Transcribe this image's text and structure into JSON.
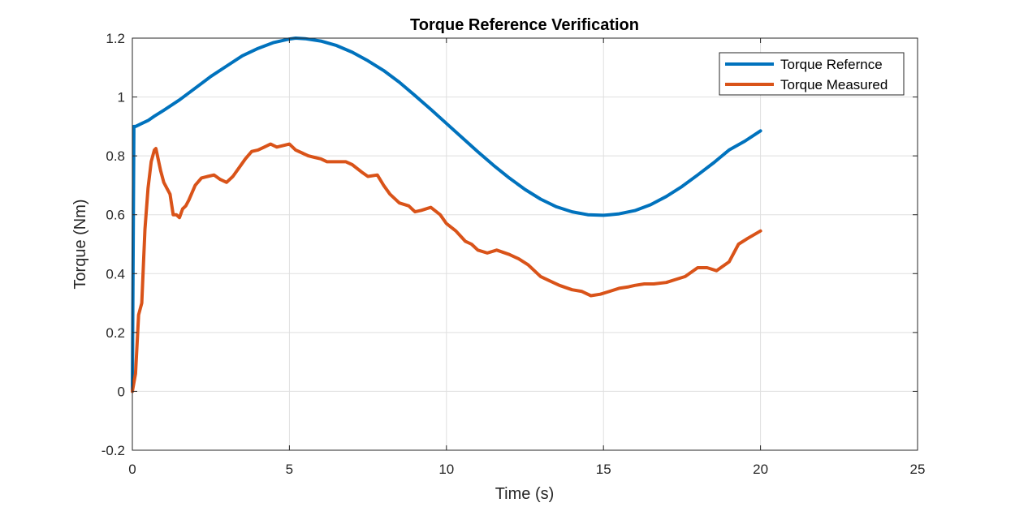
{
  "chart_data": {
    "type": "line",
    "title": "Torque Reference Verification",
    "xlabel": "Time (s)",
    "ylabel": "Torque (Nm)",
    "xlim": [
      0,
      25
    ],
    "ylim": [
      -0.2,
      1.2
    ],
    "xticks": [
      0,
      5,
      10,
      15,
      20,
      25
    ],
    "xtick_labels": [
      "0",
      "5",
      "10",
      "15",
      "20",
      "25"
    ],
    "yticks": [
      -0.2,
      0,
      0.2,
      0.4,
      0.6,
      0.8,
      1,
      1.2
    ],
    "ytick_labels": [
      "-0.2",
      "0",
      "0.2",
      "0.4",
      "0.6",
      "0.8",
      "1",
      "1.2"
    ],
    "grid": true,
    "legend_position": "top-right",
    "series": [
      {
        "name": "Torque Refernce",
        "color": "#0072BD",
        "x": [
          0,
          0.05,
          0.1,
          0.3,
          0.5,
          0.7,
          1,
          1.5,
          2,
          2.5,
          3,
          3.5,
          4,
          4.5,
          5,
          5.2,
          5.5,
          6,
          6.5,
          7,
          7.5,
          8,
          8.5,
          9,
          9.5,
          10,
          10.5,
          11,
          11.5,
          12,
          12.5,
          13,
          13.5,
          14,
          14.5,
          15,
          15.2,
          15.5,
          16,
          16.5,
          17,
          17.5,
          18,
          18.5,
          19,
          19.5,
          20
        ],
        "y": [
          0,
          0.9,
          0.9,
          0.91,
          0.92,
          0.935,
          0.955,
          0.99,
          1.03,
          1.07,
          1.105,
          1.14,
          1.165,
          1.185,
          1.197,
          1.2,
          1.198,
          1.19,
          1.175,
          1.152,
          1.123,
          1.09,
          1.05,
          1.005,
          0.958,
          0.91,
          0.862,
          0.814,
          0.768,
          0.725,
          0.686,
          0.653,
          0.627,
          0.61,
          0.6,
          0.598,
          0.6,
          0.603,
          0.614,
          0.634,
          0.662,
          0.696,
          0.735,
          0.776,
          0.82,
          0.85,
          0.885
        ]
      },
      {
        "name": "Torque Measured",
        "color": "#D95319",
        "x": [
          0,
          0.1,
          0.2,
          0.3,
          0.4,
          0.5,
          0.6,
          0.7,
          0.75,
          0.8,
          0.9,
          1,
          1.1,
          1.2,
          1.3,
          1.4,
          1.5,
          1.6,
          1.7,
          1.8,
          2,
          2.2,
          2.4,
          2.6,
          2.8,
          3,
          3.2,
          3.4,
          3.6,
          3.8,
          4,
          4.2,
          4.4,
          4.6,
          4.8,
          5,
          5.2,
          5.4,
          5.6,
          5.8,
          6,
          6.2,
          6.5,
          6.8,
          7,
          7.3,
          7.5,
          7.8,
          8,
          8.2,
          8.5,
          8.8,
          9,
          9.2,
          9.5,
          9.8,
          10,
          10.3,
          10.6,
          10.8,
          11,
          11.3,
          11.6,
          12,
          12.3,
          12.6,
          13,
          13.3,
          13.6,
          14,
          14.3,
          14.6,
          14.9,
          15.2,
          15.5,
          15.8,
          16,
          16.3,
          16.6,
          17,
          17.3,
          17.6,
          18,
          18.3,
          18.6,
          19,
          19.3,
          19.6,
          20
        ],
        "y": [
          0,
          0.06,
          0.26,
          0.3,
          0.55,
          0.69,
          0.78,
          0.82,
          0.825,
          0.8,
          0.75,
          0.71,
          0.69,
          0.67,
          0.6,
          0.6,
          0.59,
          0.62,
          0.63,
          0.65,
          0.7,
          0.725,
          0.73,
          0.735,
          0.72,
          0.71,
          0.73,
          0.76,
          0.79,
          0.815,
          0.82,
          0.83,
          0.84,
          0.83,
          0.835,
          0.84,
          0.82,
          0.81,
          0.8,
          0.795,
          0.79,
          0.78,
          0.78,
          0.78,
          0.77,
          0.745,
          0.73,
          0.735,
          0.7,
          0.67,
          0.64,
          0.63,
          0.61,
          0.615,
          0.625,
          0.6,
          0.57,
          0.545,
          0.51,
          0.5,
          0.48,
          0.47,
          0.48,
          0.465,
          0.45,
          0.43,
          0.39,
          0.375,
          0.36,
          0.345,
          0.34,
          0.325,
          0.33,
          0.34,
          0.35,
          0.355,
          0.36,
          0.365,
          0.365,
          0.37,
          0.38,
          0.39,
          0.42,
          0.42,
          0.41,
          0.44,
          0.5,
          0.52,
          0.545
        ]
      }
    ]
  }
}
